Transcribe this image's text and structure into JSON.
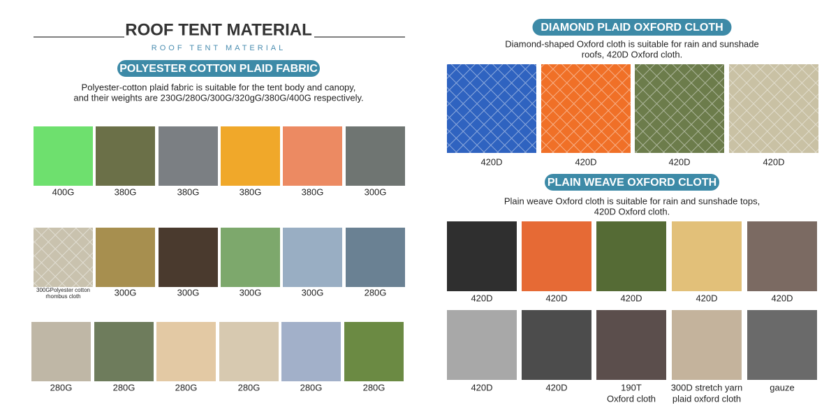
{
  "header": {
    "title": "ROOF TENT MATERIAL",
    "subtitle": "ROOF TENT MATERIAL"
  },
  "sections": [
    {
      "title": "POLYESTER COTTON PLAID FABRIC",
      "description": [
        "Polyester-cotton plaid fabric is suitable for the tent body and canopy,",
        "and their weights are 230G/280G/300G/320gG/380G/400G respectively."
      ],
      "rows": [
        [
          {
            "label": "400G",
            "color": "#6ee06e"
          },
          {
            "label": "380G",
            "color": "#6b7048"
          },
          {
            "label": "380G",
            "color": "#7b7f83"
          },
          {
            "label": "380G",
            "color": "#f0a82a"
          },
          {
            "label": "380G",
            "color": "#ec8a62"
          },
          {
            "label": "300G",
            "color": "#6f7572"
          }
        ],
        [
          {
            "label": [
              "300GPolyester cotton",
              "rhombus cloth"
            ],
            "color": "#c9c2ae"
          },
          {
            "label": "300G",
            "color": "#a78f4f"
          },
          {
            "label": "300G",
            "color": "#4a3a2e"
          },
          {
            "label": "300G",
            "color": "#7da86c"
          },
          {
            "label": "300G",
            "color": "#99aec3"
          },
          {
            "label": "280G",
            "color": "#6a8193"
          }
        ],
        [
          {
            "label": "280G",
            "color": "#bfb7a6"
          },
          {
            "label": "280G",
            "color": "#6e7c5c"
          },
          {
            "label": "280G",
            "color": "#e3c9a4"
          },
          {
            "label": "280G",
            "color": "#d7c9b0"
          },
          {
            "label": "280G",
            "color": "#a2b0c9"
          },
          {
            "label": "280G",
            "color": "#6b8a43"
          }
        ]
      ]
    },
    {
      "title": "DIAMOND PLAID OXFORD CLOTH",
      "description": [
        "Diamond-shaped Oxford cloth is suitable for rain and sunshade",
        "roofs, 420D Oxford cloth."
      ],
      "rows": [
        [
          {
            "label": "420D",
            "color": "#2f63c0"
          },
          {
            "label": "420D",
            "color": "#f07027"
          },
          {
            "label": "420D",
            "color": "#6c7c4b"
          },
          {
            "label": "420D",
            "color": "#c9c1a4"
          }
        ]
      ]
    },
    {
      "title": "PLAIN WEAVE OXFORD CLOTH",
      "description": [
        "Plain weave Oxford cloth is suitable for rain and sunshade tops,",
        "420D Oxford cloth."
      ],
      "rows": [
        [
          {
            "label": "420D",
            "color": "#2f2f2f"
          },
          {
            "label": "420D",
            "color": "#e66a35"
          },
          {
            "label": "420D",
            "color": "#556b35"
          },
          {
            "label": "420D",
            "color": "#e2c079"
          },
          {
            "label": "420D",
            "color": "#7b6a62"
          }
        ],
        [
          {
            "label": "420D",
            "color": "#a8a8a8"
          },
          {
            "label": "420D",
            "color": "#4c4c4c"
          },
          {
            "label": [
              "190T",
              "Oxford cloth"
            ],
            "color": "#5b4e4c"
          },
          {
            "label": [
              "300D stretch yarn",
              "plaid oxford cloth"
            ],
            "color": "#c4b39c"
          },
          {
            "label": "gauze",
            "color": "#6a6a6a"
          }
        ]
      ]
    }
  ]
}
